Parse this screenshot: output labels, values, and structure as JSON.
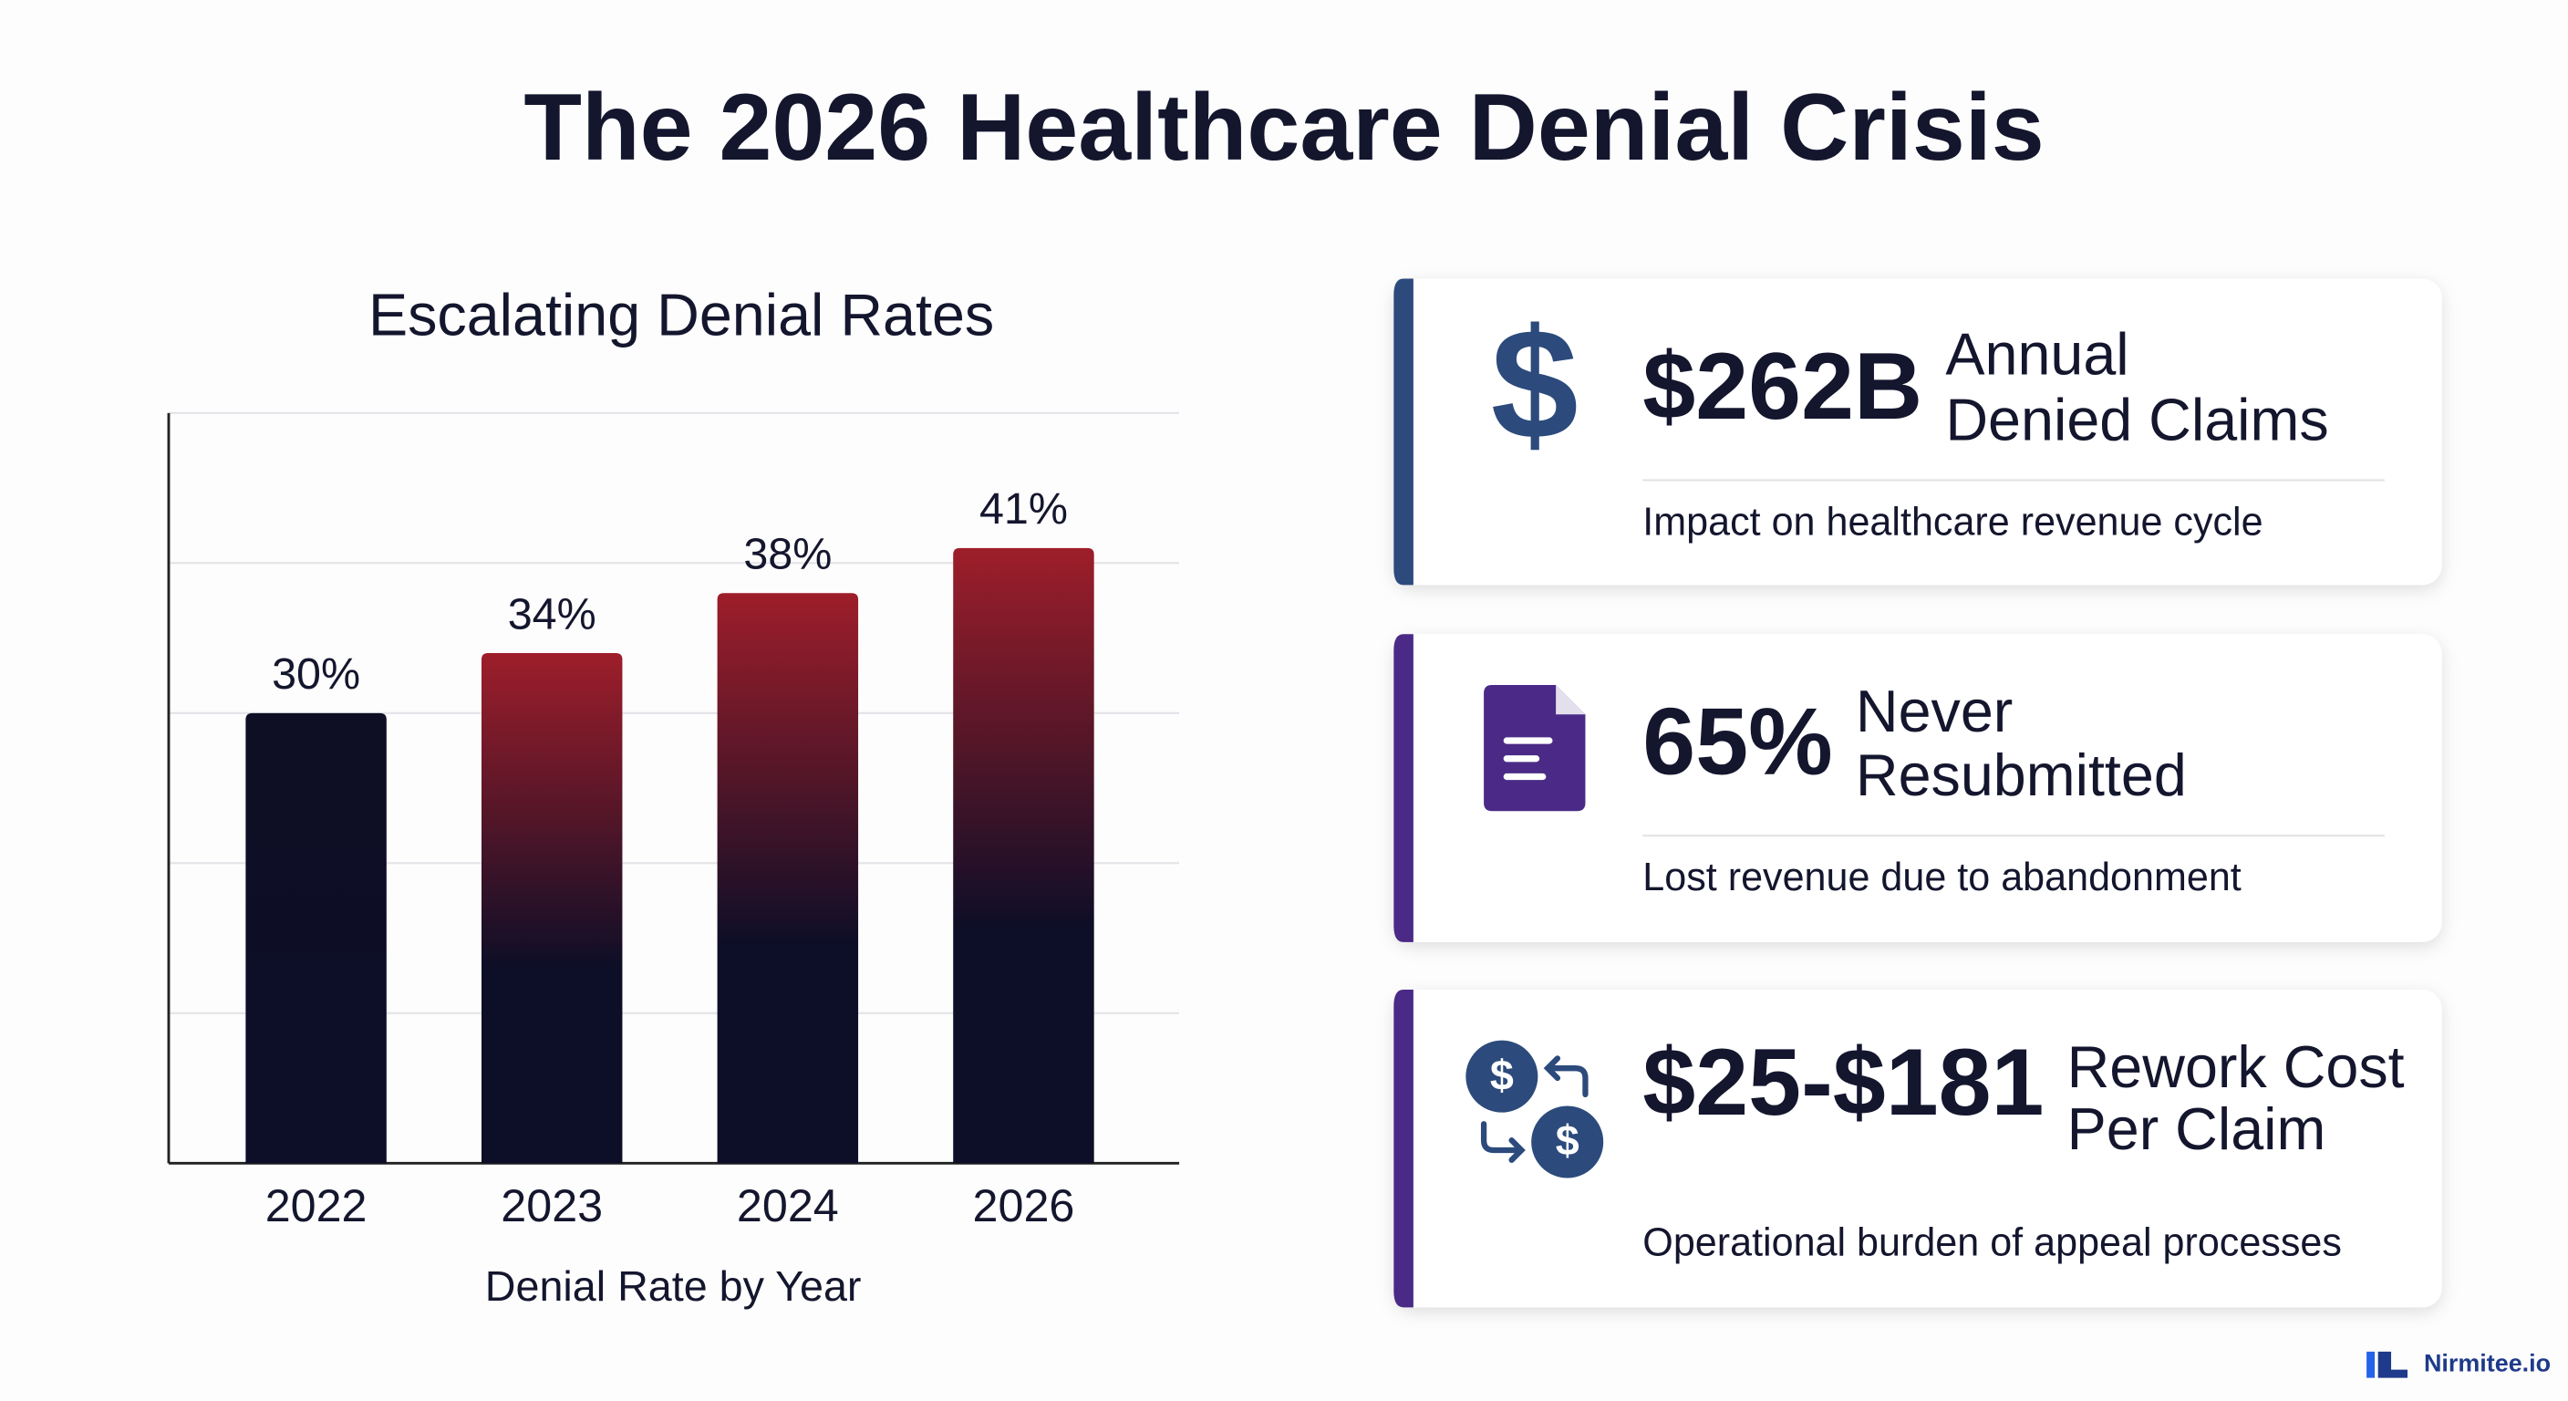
{
  "title": "The 2026 Healthcare Denial Crisis",
  "chart_data": {
    "type": "bar",
    "title": "Escalating Denial Rates",
    "xlabel": "Denial Rate by Year",
    "categories": [
      "2022",
      "2023",
      "2024",
      "2026"
    ],
    "values": [
      30,
      34,
      38,
      41
    ],
    "value_labels": [
      "30%",
      "34%",
      "38%",
      "41%"
    ],
    "colors": [
      "#0e0f24",
      "#9e1e2a",
      "#9e1e2a",
      "#9e1e2a"
    ],
    "gradient_bottom": "#0d0e27",
    "ylim": [
      0,
      50
    ],
    "yticks": [
      0,
      10,
      20,
      30,
      40,
      50
    ],
    "ytick_labels": false,
    "grid": true
  },
  "cards": [
    {
      "value": "$262B",
      "label": [
        "Annual",
        "Denied Claims"
      ],
      "description": "Impact on healthcare revenue cycle",
      "accent": "#2c4a7c"
    },
    {
      "value": "65%",
      "label": [
        "Never",
        "Resubmitted"
      ],
      "description": "Lost revenue due to abandonment",
      "accent": "#4a2a86"
    },
    {
      "value": "$25-$181",
      "label": [
        "Rework Cost",
        "Per Claim"
      ],
      "description": "Operational burden of appeal processes",
      "accent": "#4a2a86"
    }
  ],
  "brand": "Nirmitee.io"
}
